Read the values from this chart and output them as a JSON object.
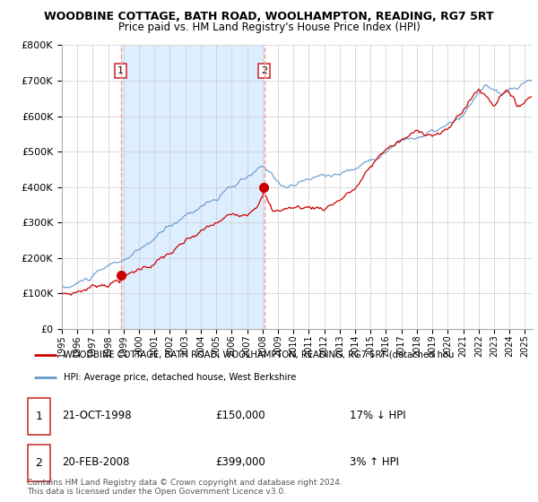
{
  "title": "WOODBINE COTTAGE, BATH ROAD, WOOLHAMPTON, READING, RG7 5RT",
  "subtitle": "Price paid vs. HM Land Registry's House Price Index (HPI)",
  "legend_line1": "WOODBINE COTTAGE, BATH ROAD, WOOLHAMPTON, READING, RG7 5RT (detached hou",
  "legend_line2": "HPI: Average price, detached house, West Berkshire",
  "footnote": "Contains HM Land Registry data © Crown copyright and database right 2024.\nThis data is licensed under the Open Government Licence v3.0.",
  "sale1_date": 1998.81,
  "sale1_price": 150000,
  "sale1_label": "21-OCT-1998",
  "sale1_pct": "17% ↓ HPI",
  "sale2_date": 2008.12,
  "sale2_price": 399000,
  "sale2_label": "20-FEB-2008",
  "sale2_pct": "3% ↑ HPI",
  "ylim": [
    0,
    800000
  ],
  "xlim_start": 1995.0,
  "xlim_end": 2025.5,
  "red_color": "#cc0000",
  "blue_color": "#6699cc",
  "shade_color": "#ddeeff",
  "vline_color": "#ff9999",
  "grid_color": "#cccccc",
  "background_color": "#ffffff",
  "table_border_color": "#cc3333"
}
